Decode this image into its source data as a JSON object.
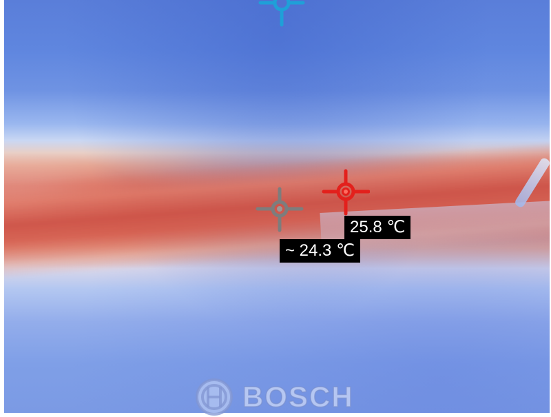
{
  "hot_spot": {
    "reading": "25.8 ℃",
    "color": "#e3201c",
    "icon": "crosshair-icon"
  },
  "center_spot": {
    "reading": "~ 24.3 ℃",
    "color": "#7d7d7d",
    "icon": "crosshair-icon"
  },
  "cold_spot": {
    "color": "#1fa0d8",
    "icon": "crosshair-icon"
  },
  "brand": {
    "logo_text": "BOSCH",
    "icon": "bosch-armature-icon"
  }
}
